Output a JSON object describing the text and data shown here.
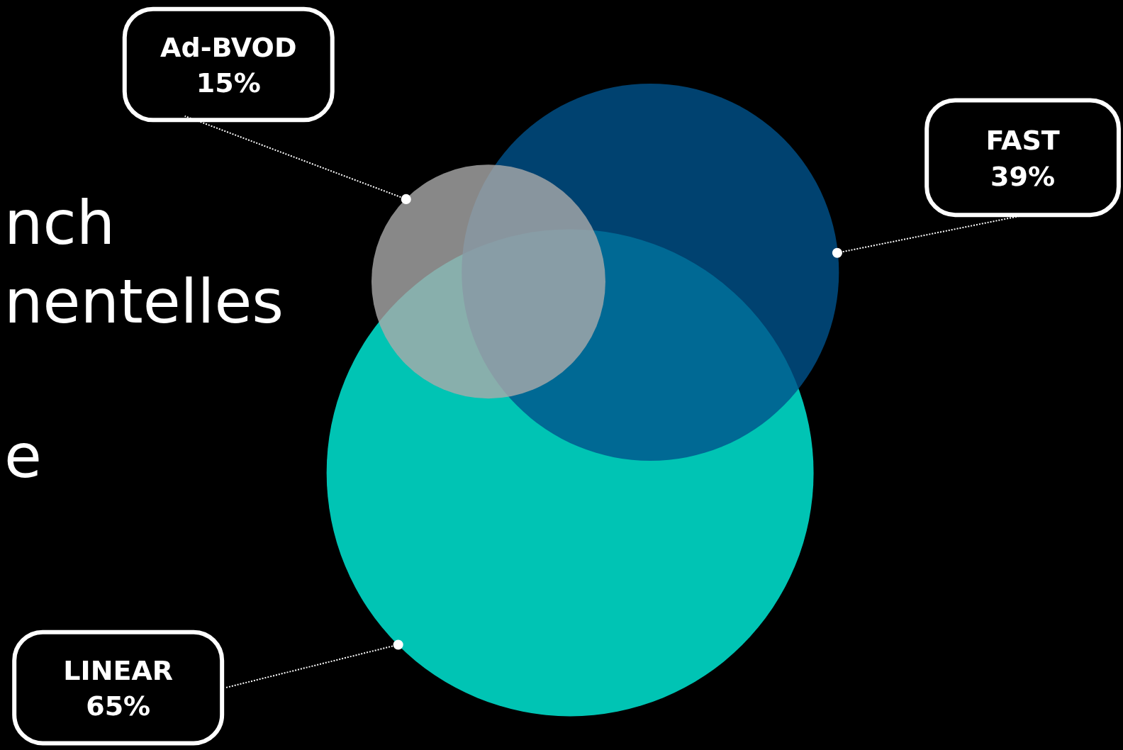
{
  "chart_data": {
    "type": "other",
    "categories": [
      "LINEAR",
      "FAST",
      "Ad-BVOD"
    ],
    "values": [
      65,
      39,
      15
    ],
    "value_labels": [
      "65%",
      "39%",
      "15%"
    ],
    "colors": [
      "#00c4b4",
      "#00538c",
      "#aaaaaa"
    ],
    "annotations": [
      "nch",
      "nentelles",
      "e"
    ]
  }
}
